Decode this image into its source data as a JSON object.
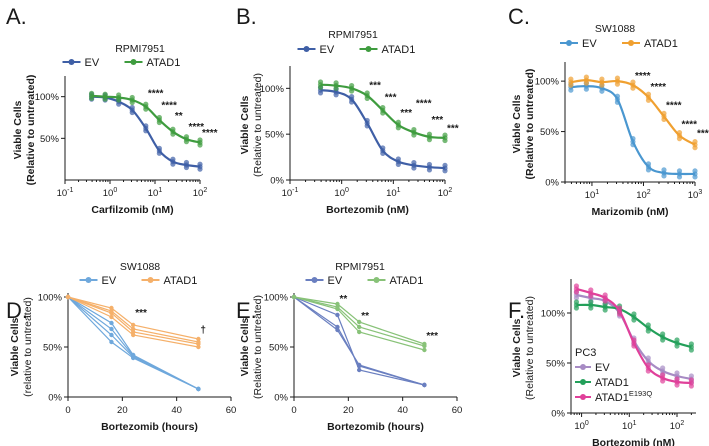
{
  "chart_data": [
    {
      "panel": "A.",
      "type": "scatter",
      "title": "RPMI7951",
      "xscale": "log",
      "xlim": [
        0.1,
        100
      ],
      "ylim": [
        0,
        120
      ],
      "xticks": [
        0.1,
        1,
        10,
        100
      ],
      "xtick_labels": [
        "10-1",
        "100",
        "101",
        "102"
      ],
      "yticks": [
        50,
        100
      ],
      "ytick_labels": [
        "50%",
        "100%"
      ],
      "ylabel": "Viable Cells",
      "ylabel2": "(Relative to untreated)",
      "ylabel2_bold": true,
      "xlabel": "Carfilzomib (nM)",
      "legend_position": "top",
      "series": [
        {
          "name": "EV",
          "color": "#3f5fa6",
          "x": [
            0.39,
            0.78,
            1.56,
            3.12,
            6.25,
            12.5,
            25,
            50,
            100
          ],
          "y": [
            100,
            99,
            94,
            84,
            62,
            35,
            22,
            18,
            16
          ]
        },
        {
          "name": "ATAD1",
          "color": "#3f9c3f",
          "x": [
            0.39,
            0.78,
            1.56,
            3.12,
            6.25,
            12.5,
            25,
            50,
            100
          ],
          "y": [
            101,
            100,
            99,
            96,
            88,
            72,
            58,
            49,
            45
          ]
        }
      ],
      "stars": [
        {
          "text": "****",
          "x": 6.25,
          "y": 100
        },
        {
          "text": "****",
          "x": 12.5,
          "y": 86
        },
        {
          "text": "**",
          "x": 25,
          "y": 73
        },
        {
          "text": "****",
          "x": 50,
          "y": 60
        },
        {
          "text": "****",
          "x": 100,
          "y": 53
        }
      ]
    },
    {
      "panel": "B.",
      "type": "scatter",
      "title": "RPMI7951",
      "xscale": "log",
      "xlim": [
        0.1,
        100
      ],
      "ylim": [
        0,
        120
      ],
      "xticks": [
        0.1,
        1,
        10,
        100
      ],
      "xtick_labels": [
        "10-1",
        "100",
        "101",
        "102"
      ],
      "yticks": [
        0,
        50,
        100
      ],
      "ytick_labels": [
        "0%",
        "50%",
        "100%"
      ],
      "ylabel": "Viable Cells",
      "ylabel2": "(Relative to untreated)",
      "ylabel2_bold": false,
      "xlabel": "Bortezomib (nM)",
      "legend_position": "top",
      "series": [
        {
          "name": "EV",
          "color": "#3f5fa6",
          "x": [
            0.39,
            0.78,
            1.56,
            3.12,
            6.25,
            12.5,
            25,
            50,
            100
          ],
          "y": [
            98,
            96,
            88,
            62,
            32,
            20,
            16,
            14,
            13
          ]
        },
        {
          "name": "ATAD1",
          "color": "#3f9c3f",
          "x": [
            0.39,
            0.78,
            1.56,
            3.12,
            6.25,
            12.5,
            25,
            50,
            100
          ],
          "y": [
            104,
            103,
            100,
            92,
            76,
            60,
            52,
            47,
            46
          ]
        }
      ],
      "stars": [
        {
          "text": "***",
          "x": 3.12,
          "y": 100
        },
        {
          "text": "***",
          "x": 6.25,
          "y": 87
        },
        {
          "text": "***",
          "x": 12.5,
          "y": 70
        },
        {
          "text": "****",
          "x": 25,
          "y": 80
        },
        {
          "text": "***",
          "x": 50,
          "y": 62
        },
        {
          "text": "***",
          "x": 100,
          "y": 53
        }
      ]
    },
    {
      "panel": "C.",
      "type": "scatter",
      "title": "SW1088",
      "xscale": "log",
      "xlim": [
        3,
        1000
      ],
      "ylim": [
        0,
        115
      ],
      "xticks": [
        10,
        100,
        1000
      ],
      "xtick_labels": [
        "101",
        "102",
        "103"
      ],
      "yticks": [
        0,
        50,
        100
      ],
      "ytick_labels": [
        "0%",
        "50%",
        "100%"
      ],
      "ylabel": "Viable Cells",
      "ylabel2": "(Relative to untreated)",
      "ylabel2_bold": true,
      "xlabel": "Marizomib (nM)",
      "legend_position": "top",
      "series": [
        {
          "name": "EV",
          "color": "#4a97d0",
          "x": [
            3.9,
            7.8,
            15.6,
            31.25,
            62.5,
            125,
            250,
            500,
            1000
          ],
          "y": [
            94,
            95,
            93,
            82,
            40,
            15,
            9,
            8,
            8
          ]
        },
        {
          "name": "ATAD1",
          "color": "#f0a030",
          "x": [
            3.9,
            7.8,
            15.6,
            31.25,
            62.5,
            125,
            250,
            500,
            1000
          ],
          "y": [
            99,
            101,
            99,
            100,
            96,
            84,
            65,
            46,
            37
          ]
        }
      ],
      "stars": [
        {
          "text": "****",
          "x": 62.5,
          "y": 102
        },
        {
          "text": "****",
          "x": 125,
          "y": 91
        },
        {
          "text": "****",
          "x": 250,
          "y": 73
        },
        {
          "text": "****",
          "x": 500,
          "y": 54
        },
        {
          "text": "****",
          "x": 1000,
          "y": 45
        }
      ]
    },
    {
      "panel": "D.",
      "type": "line",
      "title": "SW1088",
      "xscale": "linear",
      "xlim": [
        0,
        60
      ],
      "ylim": [
        0,
        100
      ],
      "xticks": [
        0,
        20,
        40,
        60
      ],
      "xtick_labels": [
        "0",
        "20",
        "40",
        "60"
      ],
      "yticks": [
        0,
        50,
        100
      ],
      "ytick_labels": [
        "0%",
        "50%",
        "100%"
      ],
      "ylabel": "Viable Cells",
      "ylabel2": "(relative to untreated)",
      "ylabel2_bold": false,
      "xlabel": "Bortezomib (hours)",
      "legend_position": "top",
      "x": [
        0,
        16,
        24,
        48
      ],
      "series": [
        {
          "name": "EV",
          "color": "#6fa8dc",
          "replicates": [
            [
              100,
              55,
              39,
              8
            ],
            [
              100,
              62,
              40,
              8
            ],
            [
              100,
              68,
              41,
              8
            ],
            [
              100,
              74,
              42,
              8
            ]
          ]
        },
        {
          "name": "ATAD1",
          "color": "#f5b06a",
          "replicates": [
            [
              100,
              80,
              62,
              50
            ],
            [
              100,
              84,
              65,
              53
            ],
            [
              100,
              86,
              68,
              55
            ],
            [
              100,
              89,
              72,
              58
            ]
          ]
        }
      ],
      "stars": [
        {
          "text": "***",
          "x": 24,
          "y": 81
        },
        {
          "text": "†",
          "x": 48,
          "y": 64
        }
      ]
    },
    {
      "panel": "E.",
      "type": "line",
      "title": "RPMI7951",
      "xscale": "linear",
      "xlim": [
        0,
        60
      ],
      "ylim": [
        0,
        100
      ],
      "xticks": [
        0,
        20,
        40,
        60
      ],
      "xtick_labels": [
        "0",
        "20",
        "40",
        "60"
      ],
      "yticks": [
        0,
        50,
        100
      ],
      "ytick_labels": [
        "0%",
        "50%",
        "100%"
      ],
      "ylabel": "Viable Cells",
      "ylabel2": "(Relative to untreated)",
      "ylabel2_bold": false,
      "xlabel": "Bortezomib (hours)",
      "legend_position": "top",
      "x": [
        0,
        16,
        24,
        48
      ],
      "series": [
        {
          "name": "EV",
          "color": "#6a7fc0",
          "replicates": [
            [
              100,
              67,
              32,
              12
            ],
            [
              100,
              70,
              31,
              12
            ],
            [
              100,
              82,
              27,
              12
            ]
          ]
        },
        {
          "name": "ATAD1",
          "color": "#88c278",
          "replicates": [
            [
              100,
              88,
              65,
              47
            ],
            [
              100,
              90,
              70,
              51
            ],
            [
              100,
              93,
              75,
              53
            ]
          ]
        }
      ],
      "stars": [
        {
          "text": "**",
          "x": 16,
          "y": 95
        },
        {
          "text": "**",
          "x": 24,
          "y": 78
        },
        {
          "text": "***",
          "x": 48,
          "y": 58
        }
      ]
    },
    {
      "panel": "F.",
      "type": "scatter",
      "title": "",
      "xscale": "log",
      "xlim": [
        0.6,
        250
      ],
      "ylim": [
        0,
        130
      ],
      "xticks": [
        1,
        10,
        100
      ],
      "xtick_labels": [
        "100",
        "101",
        "102"
      ],
      "yticks": [
        0,
        50,
        100
      ],
      "ytick_labels": [
        "0%",
        "50%",
        "100%"
      ],
      "ylabel": "Viable Cells",
      "ylabel2": "(Relative to untreated)",
      "ylabel2_bold": false,
      "xlabel": "Bortezomib (nM)",
      "legend_position": "bottom-left",
      "legend_title": "PC3",
      "series": [
        {
          "name": "EV",
          "label_main": "EV",
          "label_sup": "",
          "color": "#a78bc4",
          "x": [
            0.78,
            1.56,
            3.12,
            6.25,
            12.5,
            25,
            50,
            100,
            200
          ],
          "y": [
            118,
            115,
            112,
            100,
            72,
            52,
            42,
            37,
            34
          ]
        },
        {
          "name": "ATAD1",
          "label_main": "ATAD1",
          "label_sup": "",
          "color": "#23a05a",
          "x": [
            0.78,
            1.56,
            3.12,
            6.25,
            12.5,
            25,
            50,
            100,
            200
          ],
          "y": [
            108,
            108,
            106,
            104,
            96,
            85,
            76,
            70,
            66
          ]
        },
        {
          "name": "ATAD1 E193Q",
          "label_main": "ATAD1",
          "label_sup": "E193Q",
          "color": "#e0409a",
          "x": [
            0.78,
            1.56,
            3.12,
            6.25,
            12.5,
            25,
            50,
            100,
            200
          ],
          "y": [
            124,
            120,
            115,
            102,
            70,
            45,
            35,
            31,
            30
          ]
        }
      ],
      "stars": []
    }
  ]
}
